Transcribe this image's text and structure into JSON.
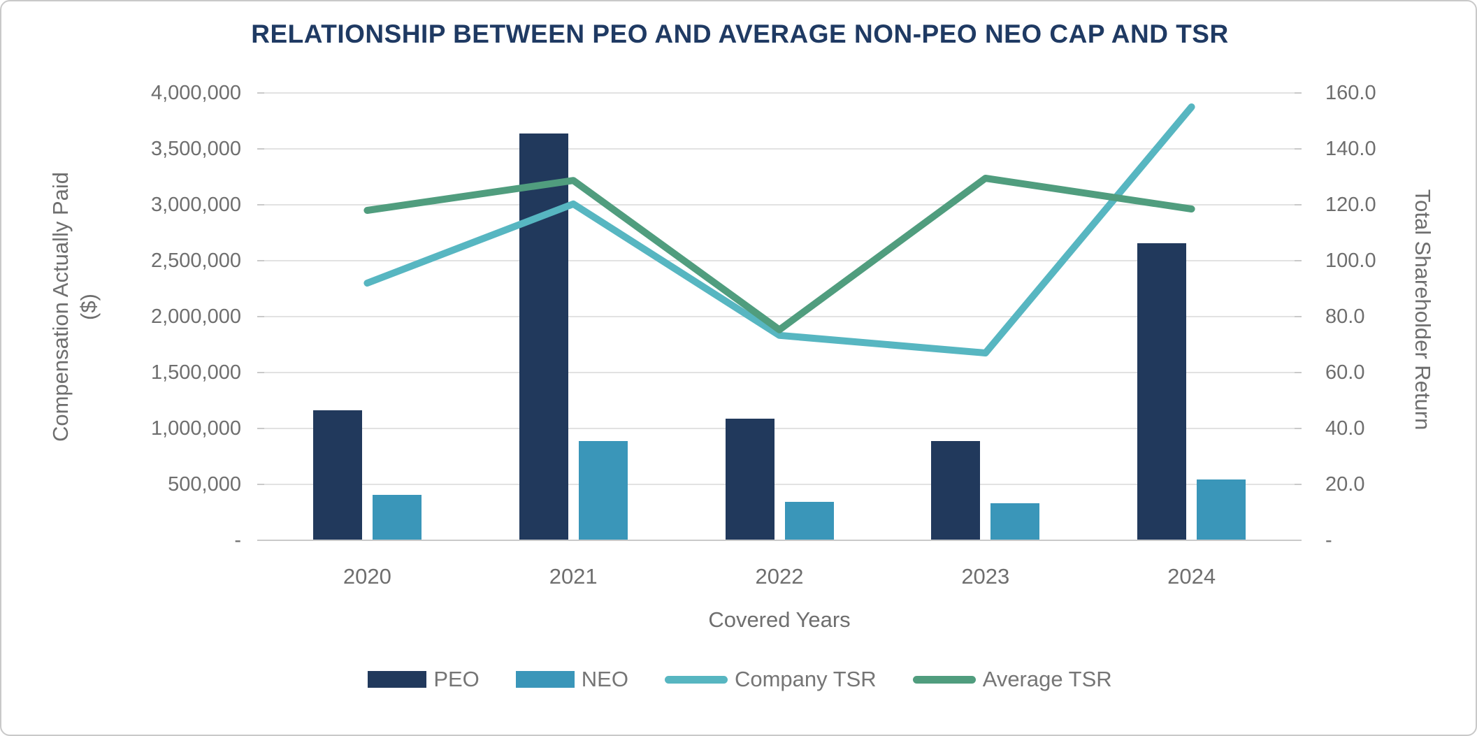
{
  "title": "RELATIONSHIP BETWEEN PEO AND AVERAGE NON-PEO NEO CAP AND TSR",
  "chart_data": {
    "type": "bar+line combo",
    "categories": [
      "2020",
      "2021",
      "2022",
      "2023",
      "2024"
    ],
    "series": [
      {
        "name": "PEO",
        "type": "bar",
        "axis": "left",
        "values": [
          1165000,
          3635000,
          1085000,
          885000,
          2655000
        ]
      },
      {
        "name": "NEO",
        "type": "bar",
        "axis": "left",
        "values": [
          405000,
          890000,
          345000,
          330000,
          545000
        ]
      },
      {
        "name": "Company TSR",
        "type": "line",
        "axis": "right",
        "values": [
          92.0,
          120.3,
          73.3,
          67.0,
          155.0
        ]
      },
      {
        "name": "Average TSR",
        "type": "line",
        "axis": "right",
        "values": [
          118.0,
          128.7,
          75.3,
          129.5,
          118.5
        ]
      }
    ],
    "title": "RELATIONSHIP BETWEEN PEO AND AVERAGE NON-PEO NEO CAP AND TSR",
    "xlabel": "Covered Years",
    "ylabel_left": "Compensation Actually Paid ($)",
    "ylabel_right": "Total Shareholder Return",
    "left_axis": {
      "min": 0,
      "max": 4000000,
      "tick_step": 500000,
      "tick_labels": [
        "-",
        "500,000",
        "1,000,000",
        "1,500,000",
        "2,000,000",
        "2,500,000",
        "3,000,000",
        "3,500,000",
        "4,000,000"
      ]
    },
    "right_axis": {
      "min": 0,
      "max": 160,
      "tick_step": 20,
      "tick_labels": [
        "-",
        "20.0",
        "40.0",
        "60.0",
        "80.0",
        "100.0",
        "120.0",
        "140.0",
        "160.0"
      ]
    },
    "grid": "horizontal-only",
    "legend_position": "bottom"
  },
  "axis_titles": {
    "left_line1": "Compensation Actually Paid",
    "left_line2": "($)",
    "right": "Total Shareholder Return",
    "x": "Covered Years"
  },
  "legend": {
    "items": [
      {
        "label": "PEO",
        "swatch": "bar"
      },
      {
        "label": "NEO",
        "swatch": "bar"
      },
      {
        "label": "Company TSR",
        "swatch": "line"
      },
      {
        "label": "Average TSR",
        "swatch": "line"
      }
    ]
  },
  "colors": {
    "peo_bar": "#21395c",
    "neo_bar": "#3a96b9",
    "company_tsr_line": "#57b6c1",
    "average_tsr_line": "#509d7e",
    "title_text": "#1f3a63",
    "axis_text": "#6e6e6e",
    "legend_text": "#757575",
    "gridline": "#e2e2e2",
    "axis_line": "#c9c9c9",
    "frame_border": "#c9c9c9"
  }
}
